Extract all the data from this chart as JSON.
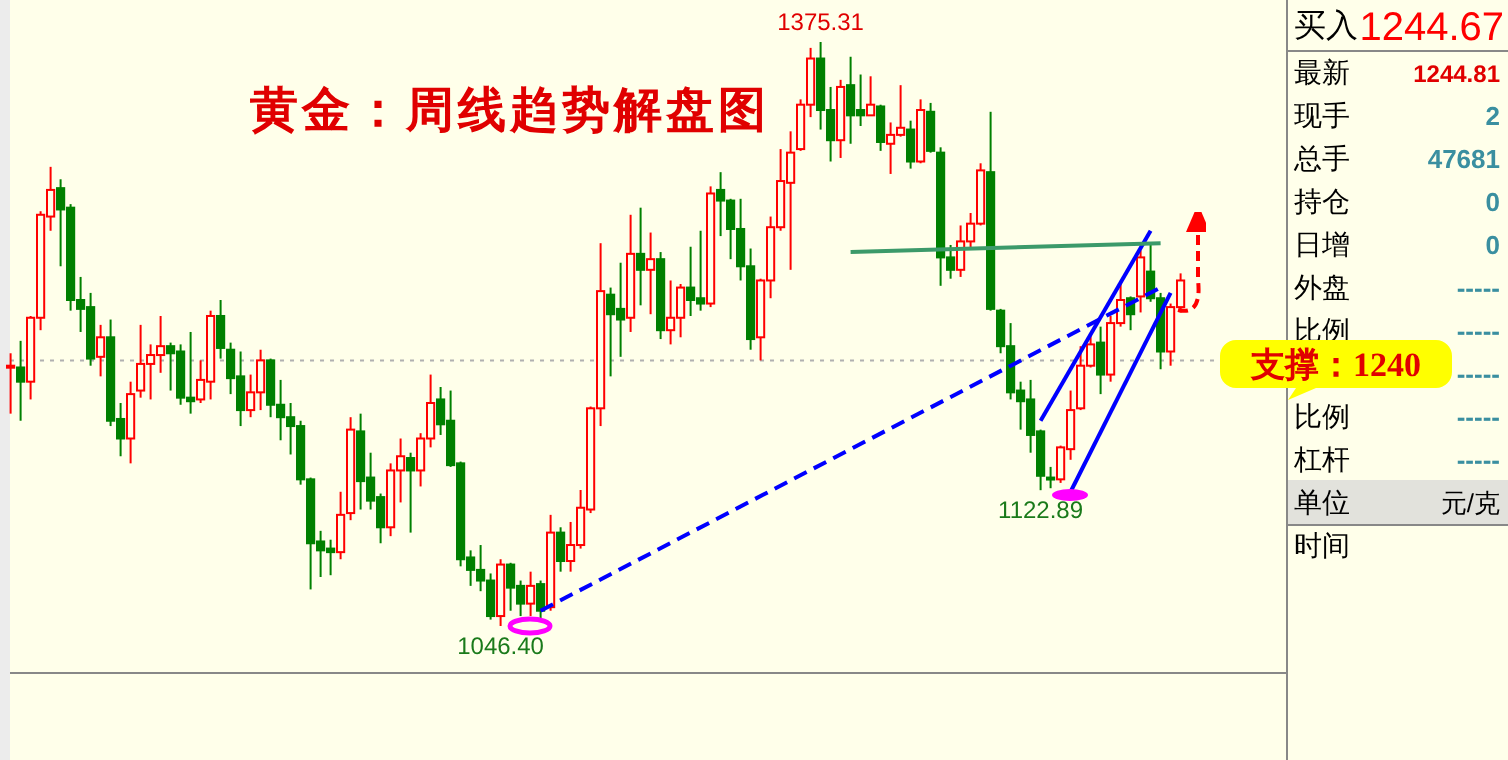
{
  "chart_data": [
    {
      "type": "candlestick",
      "title": "黄金：周线趋势解盘图",
      "colors": [
        "#ff0000",
        "#008000",
        "#ff0000",
        "#ff0000",
        "#ff0000",
        "#008000",
        "#008000",
        "#008000",
        "#008000",
        "#ff0000",
        "#008000",
        "#008000",
        "#ff0000",
        "#ff0000",
        "#ff0000",
        "#ff0000",
        "#008000",
        "#008000",
        "#008000",
        "#ff0000",
        "#ff0000",
        "#008000",
        "#008000",
        "#008000",
        "#ff0000",
        "#ff0000",
        "#008000",
        "#008000",
        "#008000",
        "#008000",
        "#008000",
        "#008000",
        "#008000",
        "#ff0000",
        "#ff0000",
        "#008000",
        "#008000",
        "#008000",
        "#ff0000",
        "#ff0000",
        "#008000",
        "#ff0000",
        "#ff0000",
        "#008000",
        "#008000",
        "#008000",
        "#008000",
        "#008000",
        "#008000",
        "#ff0000",
        "#008000",
        "#008000",
        "#ff0000",
        "#008000",
        "#ff0000",
        "#008000",
        "#ff0000",
        "#ff0000",
        "#ff0000",
        "#ff0000",
        "#008000",
        "#008000",
        "#ff0000",
        "#008000",
        "#ff0000",
        "#008000",
        "#ff0000",
        "#ff0000",
        "#008000",
        "#008000",
        "#ff0000",
        "#008000",
        "#008000",
        "#008000",
        "#008000",
        "#ff0000",
        "#ff0000",
        "#ff0000",
        "#ff0000",
        "#ff0000",
        "#ff0000",
        "#008000",
        "#008000",
        "#ff0000",
        "#008000",
        "#008000",
        "#ff0000",
        "#008000",
        "#ff0000",
        "#ff0000",
        "#008000",
        "#ff0000",
        "#008000",
        "#008000",
        "#008000",
        "#ff0000",
        "#ff0000",
        "#ff0000",
        "#008000",
        "#008000",
        "#008000",
        "#008000",
        "#008000",
        "#008000",
        "#008000",
        "#ff0000",
        "#ff0000",
        "#ff0000",
        "#ff0000",
        "#008000",
        "#ff0000",
        "#ff0000",
        "#008000",
        "#ff0000",
        "#008000",
        "#008000",
        "#ff0000",
        "#ff0000"
      ],
      "categories": [
        null,
        null,
        null,
        null,
        null,
        null,
        null,
        null,
        null,
        null,
        null,
        null,
        null,
        null,
        null,
        null,
        null,
        null,
        null,
        null,
        null,
        null,
        null,
        null,
        null,
        null,
        null,
        null,
        null,
        null,
        null,
        null,
        null,
        null,
        null,
        null,
        null,
        null,
        null,
        null,
        null,
        null,
        null,
        null,
        null,
        null,
        null,
        null,
        null,
        null,
        null,
        null,
        null,
        null,
        null,
        null,
        null,
        null,
        null,
        null,
        null,
        null,
        null,
        null,
        null,
        null,
        null,
        null,
        null,
        null,
        null,
        null,
        null,
        null,
        null,
        null,
        null,
        null,
        null,
        null,
        null,
        null,
        null,
        null,
        null,
        null,
        null,
        null,
        null,
        null,
        null,
        null,
        null,
        null,
        null,
        null,
        null,
        null,
        null,
        null,
        null,
        null,
        null,
        null,
        null,
        null,
        null,
        null,
        null,
        null,
        null,
        null,
        null,
        null,
        null,
        null,
        null,
        null
      ],
      "ohlc": [
        [
          1192,
          1200,
          1166,
          1193
        ],
        [
          1192,
          1207,
          1162,
          1184
        ],
        [
          1184,
          1221,
          1174,
          1220
        ],
        [
          1220,
          1280,
          1213,
          1278
        ],
        [
          1277,
          1305,
          1269,
          1292
        ],
        [
          1293,
          1298,
          1249,
          1281
        ],
        [
          1282,
          1284,
          1224,
          1230
        ],
        [
          1230,
          1243,
          1212,
          1225
        ],
        [
          1226,
          1234,
          1193,
          1197
        ],
        [
          1198,
          1216,
          1187,
          1209
        ],
        [
          1209,
          1219,
          1159,
          1162
        ],
        [
          1163,
          1172,
          1142,
          1152
        ],
        [
          1152,
          1184,
          1138,
          1177
        ],
        [
          1179,
          1216,
          1175,
          1194
        ],
        [
          1194,
          1205,
          1174,
          1199
        ],
        [
          1199,
          1221,
          1189,
          1204
        ],
        [
          1204,
          1206,
          1179,
          1200
        ],
        [
          1201,
          1205,
          1171,
          1175
        ],
        [
          1175,
          1212,
          1166,
          1173
        ],
        [
          1174,
          1196,
          1172,
          1185
        ],
        [
          1184,
          1224,
          1174,
          1221
        ],
        [
          1221,
          1230,
          1197,
          1203
        ],
        [
          1202,
          1206,
          1177,
          1186
        ],
        [
          1187,
          1201,
          1159,
          1168
        ],
        [
          1168,
          1188,
          1164,
          1178
        ],
        [
          1178,
          1202,
          1168,
          1196
        ],
        [
          1196,
          1197,
          1164,
          1171
        ],
        [
          1171,
          1185,
          1151,
          1164
        ],
        [
          1164,
          1172,
          1143,
          1159
        ],
        [
          1159,
          1162,
          1126,
          1129
        ],
        [
          1129,
          1130,
          1067,
          1093
        ],
        [
          1094,
          1100,
          1074,
          1089
        ],
        [
          1090,
          1095,
          1075,
          1088
        ],
        [
          1088,
          1122,
          1084,
          1109
        ],
        [
          1110,
          1164,
          1106,
          1157
        ],
        [
          1156,
          1166,
          1112,
          1128
        ],
        [
          1130,
          1144,
          1112,
          1117
        ],
        [
          1119,
          1121,
          1093,
          1102
        ],
        [
          1102,
          1138,
          1097,
          1134
        ],
        [
          1134,
          1152,
          1116,
          1142
        ],
        [
          1141,
          1144,
          1099,
          1134
        ],
        [
          1134,
          1155,
          1125,
          1152
        ],
        [
          1152,
          1188,
          1147,
          1172
        ],
        [
          1174,
          1181,
          1154,
          1160
        ],
        [
          1162,
          1179,
          1136,
          1137
        ],
        [
          1138,
          1139,
          1080,
          1084
        ],
        [
          1085,
          1089,
          1069,
          1078
        ],
        [
          1078,
          1092,
          1066,
          1072
        ],
        [
          1072,
          1076,
          1050,
          1052
        ],
        [
          1052,
          1084,
          1046.4,
          1081
        ],
        [
          1081,
          1082,
          1055,
          1068
        ],
        [
          1069,
          1072,
          1052,
          1059
        ],
        [
          1059,
          1077,
          1052,
          1069
        ],
        [
          1070,
          1072,
          1050,
          1055
        ],
        [
          1057,
          1109,
          1055,
          1099
        ],
        [
          1099,
          1102,
          1077,
          1083
        ],
        [
          1083,
          1105,
          1077,
          1092
        ],
        [
          1092,
          1123,
          1090,
          1113
        ],
        [
          1112,
          1170,
          1110,
          1169
        ],
        [
          1169,
          1262,
          1159,
          1235
        ],
        [
          1233,
          1237,
          1187,
          1222
        ],
        [
          1225,
          1251,
          1198,
          1219
        ],
        [
          1220,
          1278,
          1212,
          1256
        ],
        [
          1256,
          1282,
          1227,
          1247
        ],
        [
          1247,
          1268,
          1222,
          1253
        ],
        [
          1253,
          1257,
          1208,
          1213
        ],
        [
          1213,
          1241,
          1205,
          1220
        ],
        [
          1220,
          1239,
          1209,
          1237
        ],
        [
          1237,
          1260,
          1221,
          1230
        ],
        [
          1231,
          1269,
          1224,
          1228
        ],
        [
          1228,
          1294,
          1226,
          1290
        ],
        [
          1292,
          1302,
          1266,
          1286
        ],
        [
          1286,
          1287,
          1253,
          1270
        ],
        [
          1270,
          1287,
          1241,
          1249
        ],
        [
          1249,
          1259,
          1202,
          1208
        ],
        [
          1209,
          1242,
          1196,
          1241
        ],
        [
          1241,
          1277,
          1231,
          1271
        ],
        [
          1271,
          1315,
          1269,
          1297
        ],
        [
          1296,
          1325,
          1247,
          1313
        ],
        [
          1315,
          1343,
          1314,
          1340
        ],
        [
          1340,
          1372,
          1333,
          1366
        ],
        [
          1366,
          1375.31,
          1326,
          1337
        ],
        [
          1337,
          1350,
          1308,
          1320
        ],
        [
          1320,
          1354,
          1310,
          1350
        ],
        [
          1351,
          1367,
          1318,
          1334
        ],
        [
          1337,
          1357,
          1328,
          1334
        ],
        [
          1334,
          1356,
          1334,
          1340
        ],
        [
          1339,
          1340,
          1314,
          1319
        ],
        [
          1318,
          1330,
          1301,
          1323
        ],
        [
          1323,
          1351,
          1322,
          1327
        ],
        [
          1326,
          1331,
          1304,
          1308
        ],
        [
          1308,
          1343,
          1307,
          1337
        ],
        [
          1336,
          1341,
          1313,
          1314
        ],
        [
          1313,
          1316,
          1238,
          1254
        ],
        [
          1254,
          1261,
          1242,
          1247
        ],
        [
          1247,
          1272,
          1243,
          1263
        ],
        [
          1263,
          1279,
          1259,
          1273
        ],
        [
          1273,
          1307,
          1272,
          1303
        ],
        [
          1302,
          1336,
          1224,
          1225
        ],
        [
          1224,
          1225,
          1200,
          1204
        ],
        [
          1204,
          1217,
          1174,
          1178
        ],
        [
          1179,
          1184,
          1157,
          1173
        ],
        [
          1174,
          1185,
          1144,
          1154
        ],
        [
          1156,
          1157,
          1122.89,
          1131
        ],
        [
          1130,
          1136,
          1124,
          1129
        ],
        [
          1129,
          1148,
          1127,
          1147
        ],
        [
          1146,
          1179,
          1140,
          1168
        ],
        [
          1169,
          1204,
          1168,
          1193
        ],
        [
          1193,
          1211,
          1192,
          1205
        ],
        [
          1206,
          1215,
          1177,
          1188
        ],
        [
          1188,
          1221,
          1184,
          1217
        ],
        [
          1217,
          1239,
          1215,
          1230
        ],
        [
          1231,
          1232,
          1213,
          1222
        ],
        [
          1232,
          1258,
          1223,
          1254
        ],
        [
          1246,
          1261,
          1229,
          1231
        ],
        [
          1231,
          1234,
          1191,
          1201
        ],
        [
          1201,
          1228,
          1193,
          1226
        ],
        [
          1226,
          1245,
          1223,
          1241
        ]
      ],
      "series": [
        {
          "type": "line",
          "color": "#0000ff",
          "line_style": "dashed",
          "values": [
            null,
            null,
            null,
            null,
            null,
            null,
            null,
            null,
            null,
            null,
            null,
            null,
            null,
            null,
            null,
            null,
            null,
            null,
            null,
            null,
            null,
            null,
            null,
            null,
            null,
            null,
            null,
            null,
            null,
            null,
            null,
            null,
            null,
            null,
            null,
            null,
            null,
            null,
            null,
            null,
            null,
            null,
            null,
            null,
            null,
            null,
            null,
            null,
            null,
            null,
            null,
            null,
            null,
            1055,
            null,
            null,
            null,
            null,
            null,
            null,
            null,
            null,
            null,
            null,
            null,
            null,
            null,
            null,
            null,
            null,
            null,
            null,
            null,
            null,
            null,
            null,
            null,
            null,
            null,
            null,
            null,
            null,
            null,
            null,
            null,
            null,
            null,
            null,
            null,
            null,
            null,
            null,
            null,
            null,
            null,
            null,
            null,
            null,
            null,
            null,
            null,
            null,
            null,
            null,
            null,
            null,
            null,
            null,
            null,
            null,
            null,
            null,
            null,
            null,
            null,
            1237,
            null,
            null
          ]
        },
        {
          "type": "line",
          "color": "#0000ff",
          "line_style": "solid",
          "values": [
            null,
            null,
            null,
            null,
            null,
            null,
            null,
            null,
            null,
            null,
            null,
            null,
            null,
            null,
            null,
            null,
            null,
            null,
            null,
            null,
            null,
            null,
            null,
            null,
            null,
            null,
            null,
            null,
            null,
            null,
            null,
            null,
            null,
            null,
            null,
            null,
            null,
            null,
            null,
            null,
            null,
            null,
            null,
            null,
            null,
            null,
            null,
            null,
            null,
            null,
            null,
            null,
            null,
            null,
            null,
            null,
            null,
            null,
            null,
            null,
            null,
            null,
            null,
            null,
            null,
            null,
            null,
            null,
            null,
            null,
            null,
            null,
            null,
            null,
            null,
            null,
            null,
            null,
            null,
            null,
            null,
            null,
            null,
            null,
            null,
            null,
            null,
            null,
            null,
            null,
            null,
            null,
            null,
            null,
            null,
            null,
            null,
            null,
            null,
            null,
            null,
            null,
            null,
            1162,
            null,
            null,
            null,
            null,
            null,
            null,
            null,
            null,
            null,
            null,
            1269,
            null,
            null,
            null
          ]
        },
        {
          "type": "line",
          "color": "#0000ff",
          "line_style": "solid",
          "values": [
            null,
            null,
            null,
            null,
            null,
            null,
            null,
            null,
            null,
            null,
            null,
            null,
            null,
            null,
            null,
            null,
            null,
            null,
            null,
            null,
            null,
            null,
            null,
            null,
            null,
            null,
            null,
            null,
            null,
            null,
            null,
            null,
            null,
            null,
            null,
            null,
            null,
            null,
            null,
            null,
            null,
            null,
            null,
            null,
            null,
            null,
            null,
            null,
            null,
            null,
            null,
            null,
            null,
            null,
            null,
            null,
            null,
            null,
            null,
            null,
            null,
            null,
            null,
            null,
            null,
            null,
            null,
            null,
            null,
            null,
            null,
            null,
            null,
            null,
            null,
            null,
            null,
            null,
            null,
            null,
            null,
            null,
            null,
            null,
            null,
            null,
            null,
            null,
            null,
            null,
            null,
            null,
            null,
            null,
            null,
            null,
            null,
            null,
            null,
            null,
            null,
            null,
            null,
            null,
            null,
            null,
            1122,
            null,
            null,
            null,
            null,
            null,
            null,
            null,
            null,
            null,
            1234,
            null
          ]
        },
        {
          "type": "line",
          "color": "#3c9a6a",
          "line_style": "solid",
          "values": [
            null,
            null,
            null,
            null,
            null,
            null,
            null,
            null,
            null,
            null,
            null,
            null,
            null,
            null,
            null,
            null,
            null,
            null,
            null,
            null,
            null,
            null,
            null,
            null,
            null,
            null,
            null,
            null,
            null,
            null,
            null,
            null,
            null,
            null,
            null,
            null,
            null,
            null,
            null,
            null,
            null,
            null,
            null,
            null,
            null,
            null,
            null,
            null,
            null,
            null,
            null,
            null,
            null,
            null,
            null,
            null,
            null,
            null,
            null,
            null,
            null,
            null,
            null,
            null,
            null,
            null,
            null,
            null,
            null,
            null,
            null,
            null,
            null,
            null,
            null,
            null,
            null,
            null,
            null,
            null,
            null,
            null,
            null,
            null,
            1257,
            null,
            null,
            null,
            null,
            null,
            null,
            null,
            null,
            null,
            null,
            null,
            null,
            null,
            null,
            null,
            null,
            null,
            null,
            null,
            null,
            null,
            null,
            null,
            null,
            null,
            null,
            null,
            null,
            null,
            null,
            1262,
            null,
            null
          ]
        }
      ],
      "ref_lines": [
        {
          "axis": "y",
          "value": 1196,
          "color": "#b0b0b0",
          "line_style": "dotted"
        }
      ],
      "annotations": [
        {
          "text": "1375.31",
          "y": 1375.31
        },
        {
          "text": "1046.40",
          "y": 1046.4
        },
        {
          "text": "1122.89",
          "y": 1122.89
        },
        "支撑：1240"
      ]
    },
    {
      "type": "other",
      "title": "买入",
      "subtitle": "1244.67",
      "categories": [
        "最新",
        "现手",
        "总手",
        "持仓",
        "日增",
        "外盘",
        "比例",
        null,
        "比例",
        "杠杆",
        "单位",
        "时间"
      ],
      "value_labels": [
        "1244.81",
        "2",
        "47681",
        "0",
        "0",
        "-----",
        "-----",
        "-----",
        "-----",
        "-----",
        "元/克",
        null
      ]
    }
  ]
}
